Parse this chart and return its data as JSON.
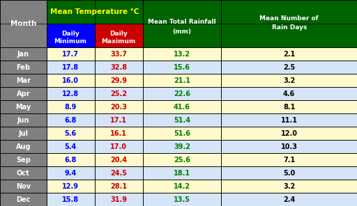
{
  "months": [
    "Jan",
    "Feb",
    "Mar",
    "Apr",
    "May",
    "Jun",
    "Jul",
    "Aug",
    "Sep",
    "Oct",
    "Nov",
    "Dec"
  ],
  "daily_min": [
    17.7,
    17.8,
    16.0,
    12.8,
    8.9,
    6.8,
    5.6,
    5.4,
    6.8,
    9.4,
    12.9,
    15.8
  ],
  "daily_max": [
    33.7,
    32.8,
    29.9,
    25.2,
    20.3,
    17.1,
    16.1,
    17.0,
    20.4,
    24.5,
    28.1,
    31.9
  ],
  "rainfall": [
    13.2,
    15.6,
    21.1,
    22.6,
    41.6,
    51.4,
    51.6,
    39.2,
    25.6,
    18.1,
    14.2,
    13.5
  ],
  "rain_days": [
    2.1,
    2.5,
    3.2,
    4.6,
    8.1,
    11.1,
    12.0,
    10.3,
    7.1,
    5.0,
    3.2,
    2.4
  ],
  "header_bg": "#006400",
  "subheader_min_bg": "#0000FF",
  "subheader_max_bg": "#CC0000",
  "row_odd_bg": "#FFFACD",
  "row_even_bg": "#D6E4F7",
  "month_col_bg": "#808080",
  "month_col_text": "#FFFFFF",
  "min_text_color": "#0000FF",
  "max_text_color": "#CC0000",
  "rainfall_text_color": "#008000",
  "rain_days_text_color": "#000000",
  "header_text_color": "#FFFFFF",
  "temp_header_text_color": "#FFFF00",
  "border_color": "#000000",
  "outer_border_color": "#666666"
}
